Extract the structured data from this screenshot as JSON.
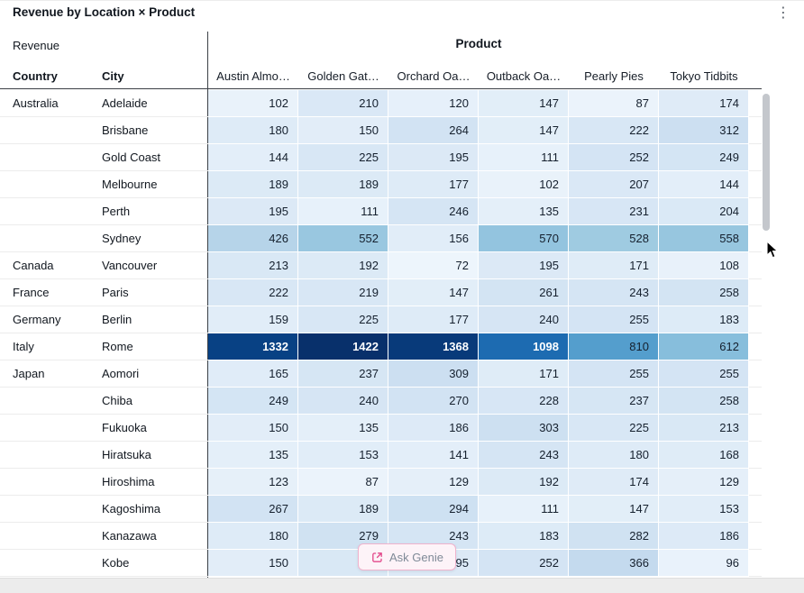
{
  "header": {
    "title": "Revenue by Location × Product"
  },
  "icons": {
    "kebab": "⋮"
  },
  "table": {
    "measure_label": "Revenue",
    "column_group_label": "Product",
    "row_headers": [
      "Country",
      "City"
    ],
    "columns": [
      "Austin Almo…",
      "Golden Gat…",
      "Orchard Oa…",
      "Outback Oa…",
      "Pearly Pies",
      "Tokyo Tidbits"
    ],
    "rows": [
      {
        "country": "Australia",
        "city": "Adelaide",
        "values": [
          102,
          210,
          120,
          147,
          87,
          174
        ]
      },
      {
        "country": "",
        "city": "Brisbane",
        "values": [
          180,
          150,
          264,
          147,
          222,
          312
        ]
      },
      {
        "country": "",
        "city": "Gold Coast",
        "values": [
          144,
          225,
          195,
          111,
          252,
          249
        ]
      },
      {
        "country": "",
        "city": "Melbourne",
        "values": [
          189,
          189,
          177,
          102,
          207,
          144
        ]
      },
      {
        "country": "",
        "city": "Perth",
        "values": [
          195,
          111,
          246,
          135,
          231,
          204
        ]
      },
      {
        "country": "",
        "city": "Sydney",
        "values": [
          426,
          552,
          156,
          570,
          528,
          558
        ]
      },
      {
        "country": "Canada",
        "city": "Vancouver",
        "values": [
          213,
          192,
          72,
          195,
          171,
          108
        ]
      },
      {
        "country": "France",
        "city": "Paris",
        "values": [
          222,
          219,
          147,
          261,
          243,
          258
        ]
      },
      {
        "country": "Germany",
        "city": "Berlin",
        "values": [
          159,
          225,
          177,
          240,
          255,
          183
        ]
      },
      {
        "country": "Italy",
        "city": "Rome",
        "values": [
          1332,
          1422,
          1368,
          1098,
          810,
          612
        ]
      },
      {
        "country": "Japan",
        "city": "Aomori",
        "values": [
          165,
          237,
          309,
          171,
          255,
          255
        ]
      },
      {
        "country": "",
        "city": "Chiba",
        "values": [
          249,
          240,
          270,
          228,
          237,
          258
        ]
      },
      {
        "country": "",
        "city": "Fukuoka",
        "values": [
          150,
          135,
          186,
          303,
          225,
          213
        ]
      },
      {
        "country": "",
        "city": "Hiratsuka",
        "values": [
          135,
          153,
          141,
          243,
          180,
          168
        ]
      },
      {
        "country": "",
        "city": "Hiroshima",
        "values": [
          123,
          87,
          129,
          192,
          174,
          129
        ]
      },
      {
        "country": "",
        "city": "Kagoshima",
        "values": [
          267,
          189,
          294,
          111,
          147,
          153
        ]
      },
      {
        "country": "",
        "city": "Kanazawa",
        "values": [
          180,
          279,
          243,
          183,
          282,
          186
        ]
      },
      {
        "country": "",
        "city": "Kobe",
        "values": [
          150,
          null,
          195,
          252,
          366,
          96
        ]
      }
    ]
  },
  "heatmap": {
    "min": 0,
    "max": 1422,
    "white_text_threshold": 0.65,
    "hidden_cell_bg": "#d9e8f5",
    "palette": [
      "#f7fbff",
      "#deebf7",
      "#c6dbef",
      "#9ecae1",
      "#6baed6",
      "#4292c6",
      "#2171b5",
      "#08519c",
      "#08306b"
    ]
  },
  "genie": {
    "label": "Ask Genie",
    "accent_color": "#e2478a"
  }
}
